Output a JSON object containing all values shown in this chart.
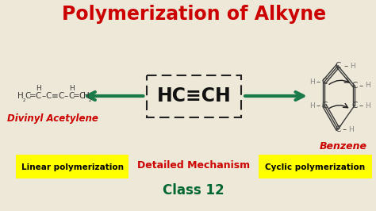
{
  "bg_color": "#ede8d8",
  "title": "Polymerization of Alkyne",
  "title_color": "#cc0000",
  "title_fontsize": 17,
  "title_fontweight": "bold",
  "arrow_color": "#1a7a4a",
  "left_label": "Divinyl Acetylene",
  "left_label_color": "#cc0000",
  "benzene_label": "Benzene",
  "benzene_label_color": "#cc0000",
  "btn_left_text": "Linear polymerization",
  "btn_right_text": "Cyclic polymerization",
  "btn_color": "#ffff00",
  "btn_text_color": "#000000",
  "middle_text": "Detailed Mechanism",
  "middle_text_color": "#cc0000",
  "bottom_text": "Class 12",
  "bottom_text_color": "#006633",
  "molecule_color": "#3a3a3a",
  "gray_color": "#888888"
}
